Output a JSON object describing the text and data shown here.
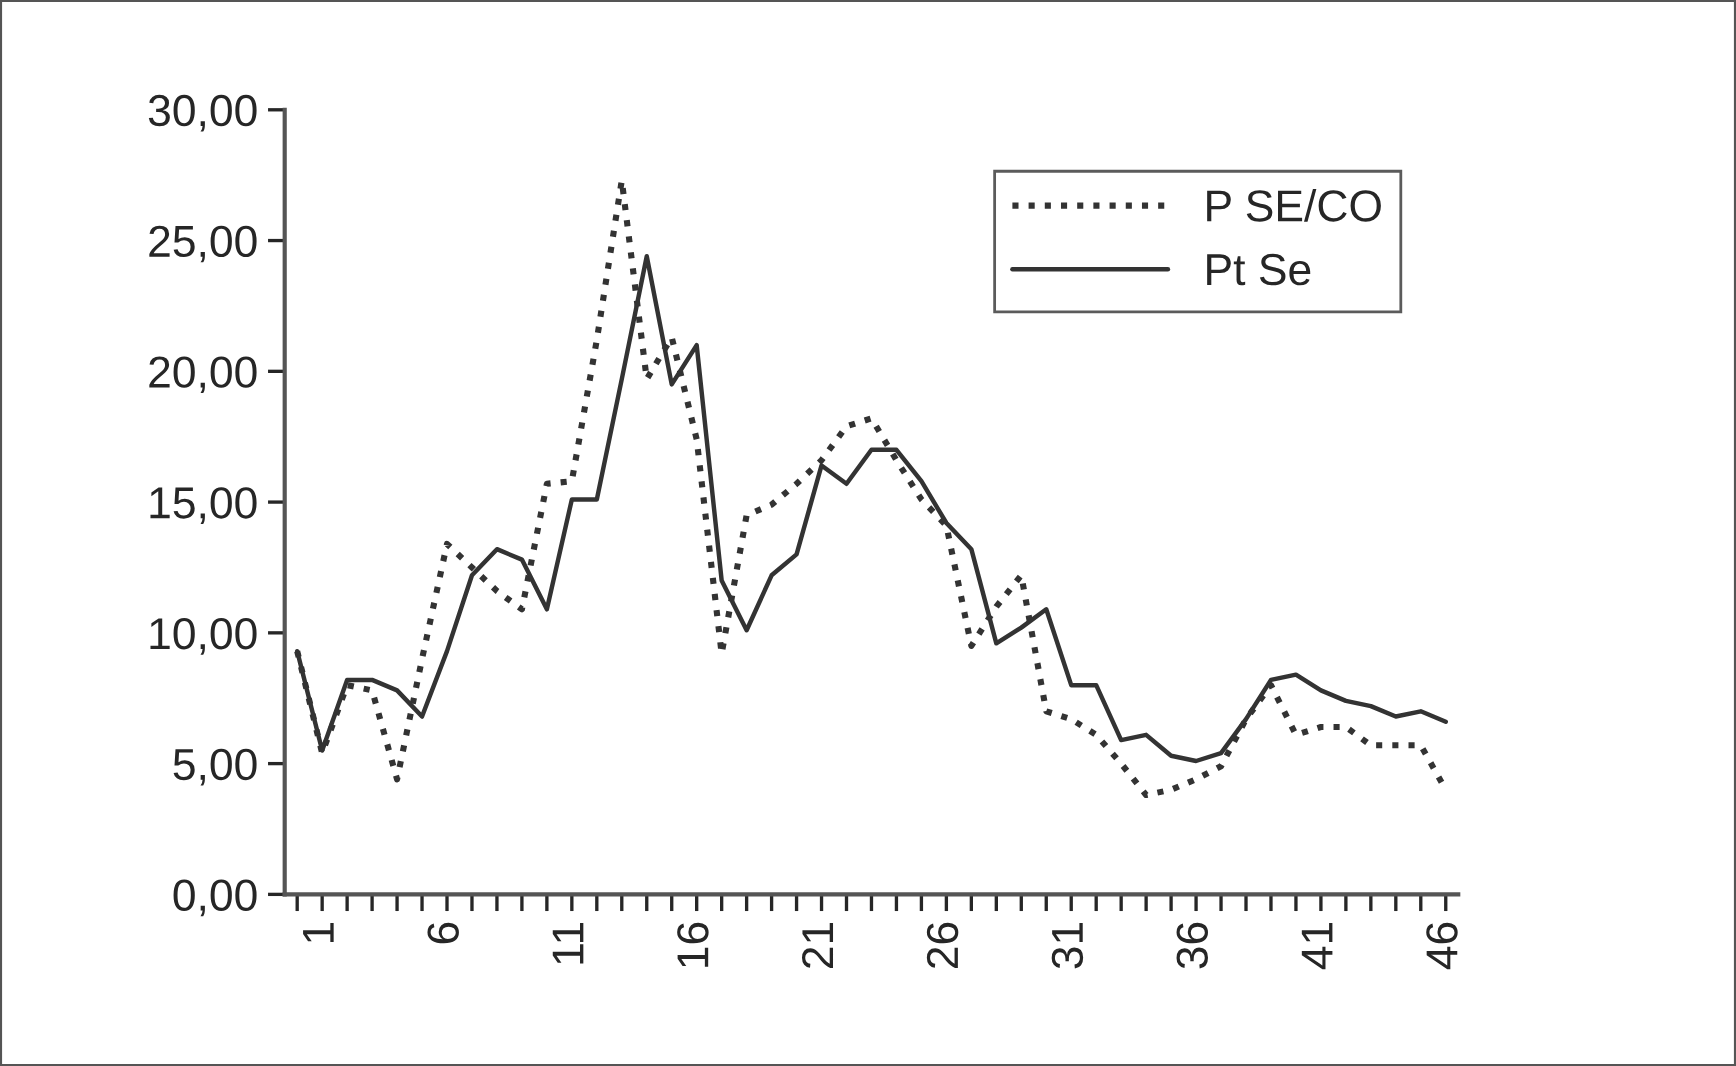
{
  "chart_data": {
    "type": "line",
    "categories": [
      null,
      "1",
      null,
      null,
      null,
      null,
      "6",
      null,
      null,
      null,
      null,
      "11",
      null,
      null,
      null,
      null,
      "16",
      null,
      null,
      null,
      null,
      "21",
      null,
      null,
      null,
      null,
      "26",
      null,
      null,
      null,
      null,
      "31",
      null,
      null,
      null,
      null,
      "36",
      null,
      null,
      null,
      null,
      "41",
      null,
      null,
      null,
      null,
      "46"
    ],
    "series": [
      {
        "name": "P SE/CO",
        "color": "#333333",
        "line_style": "dotted",
        "values": [
          9.3,
          5.4,
          8.0,
          7.8,
          4.4,
          9.0,
          13.4,
          12.5,
          11.6,
          10.9,
          15.7,
          15.8,
          21.2,
          27.3,
          19.7,
          21.3,
          17.4,
          9.2,
          14.5,
          14.9,
          15.7,
          16.6,
          17.9,
          18.2,
          16.6,
          15.1,
          14.1,
          9.5,
          11.0,
          12.2,
          7.0,
          6.7,
          6.1,
          5.0,
          3.8,
          4.0,
          4.4,
          4.9,
          6.7,
          8.0,
          6.1,
          6.4,
          6.4,
          5.7,
          5.7,
          5.7,
          4.0
        ]
      },
      {
        "name": "Pt Se",
        "color": "#333333",
        "line_style": "solid",
        "values": [
          9.3,
          5.5,
          8.2,
          8.2,
          7.8,
          6.8,
          9.3,
          12.2,
          13.2,
          12.8,
          10.9,
          15.1,
          15.1,
          19.7,
          24.4,
          19.5,
          21.0,
          12.0,
          10.1,
          12.2,
          13.0,
          16.4,
          15.7,
          17.0,
          17.0,
          15.8,
          14.2,
          13.2,
          9.6,
          10.2,
          10.9,
          8.0,
          8.0,
          5.9,
          6.1,
          5.3,
          5.1,
          5.4,
          6.7,
          8.2,
          8.4,
          7.8,
          7.4,
          7.2,
          6.8,
          7.0,
          6.6
        ]
      }
    ],
    "ylim": [
      0,
      30
    ],
    "yticks": [
      {
        "value": 0,
        "label": "0,00"
      },
      {
        "value": 5,
        "label": "5,00"
      },
      {
        "value": 10,
        "label": "10,00"
      },
      {
        "value": 15,
        "label": "15,00"
      },
      {
        "value": 20,
        "label": "20,00"
      },
      {
        "value": 25,
        "label": "25,00"
      },
      {
        "value": 30,
        "label": "30,00"
      }
    ],
    "legend": "top right",
    "grid": false,
    "marker": "none"
  }
}
